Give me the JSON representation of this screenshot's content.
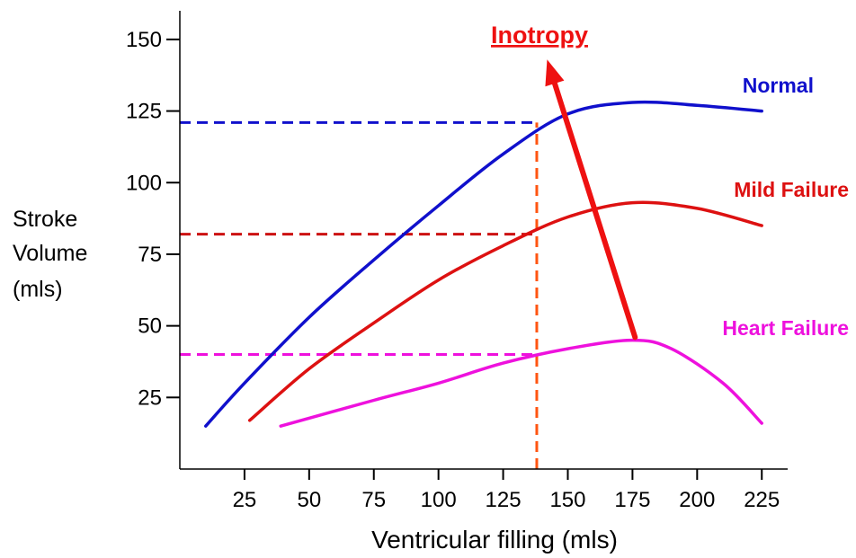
{
  "chart_data": {
    "type": "line",
    "xlabel": "Ventricular filling (mls)",
    "ylabel_lines": [
      "Stroke",
      "Volume",
      "(mls)"
    ],
    "xlim": [
      0,
      235
    ],
    "ylim": [
      0,
      160
    ],
    "x_ticks": [
      25,
      50,
      75,
      100,
      125,
      150,
      175,
      200,
      225
    ],
    "y_ticks": [
      25,
      50,
      75,
      100,
      125,
      150
    ],
    "series": [
      {
        "name": "Normal",
        "color": "#1010cc",
        "points": [
          [
            10,
            15
          ],
          [
            25,
            30
          ],
          [
            50,
            53
          ],
          [
            75,
            73
          ],
          [
            100,
            92
          ],
          [
            125,
            110
          ],
          [
            150,
            124
          ],
          [
            175,
            128
          ],
          [
            200,
            127
          ],
          [
            225,
            125
          ]
        ]
      },
      {
        "name": "Mild Failure",
        "color": "#dd1111",
        "points": [
          [
            27,
            17
          ],
          [
            50,
            35
          ],
          [
            75,
            51
          ],
          [
            100,
            66
          ],
          [
            125,
            78
          ],
          [
            150,
            88
          ],
          [
            175,
            93
          ],
          [
            200,
            91
          ],
          [
            225,
            85
          ]
        ]
      },
      {
        "name": "Heart Failure",
        "color": "#ee11dd",
        "points": [
          [
            39,
            15
          ],
          [
            75,
            24
          ],
          [
            100,
            30
          ],
          [
            125,
            37
          ],
          [
            150,
            42
          ],
          [
            175,
            45
          ],
          [
            190,
            42
          ],
          [
            210,
            30
          ],
          [
            225,
            16
          ]
        ]
      }
    ],
    "reference_lines": [
      {
        "type": "horizontal",
        "y": 121,
        "from_x": 0,
        "to_x": 138,
        "color": "#1010cc"
      },
      {
        "type": "horizontal",
        "y": 82,
        "from_x": 0,
        "to_x": 138,
        "color": "#cc1111"
      },
      {
        "type": "horizontal",
        "y": 40,
        "from_x": 0,
        "to_x": 138,
        "color": "#ee11dd"
      },
      {
        "type": "vertical",
        "x": 138,
        "from_y": 0,
        "to_y": 121,
        "color": "#ff5511"
      }
    ],
    "annotation": {
      "label": "Inotropy",
      "color": "#ee1111",
      "arrow_from": [
        176,
        46
      ],
      "arrow_to": [
        142,
        143
      ]
    }
  }
}
